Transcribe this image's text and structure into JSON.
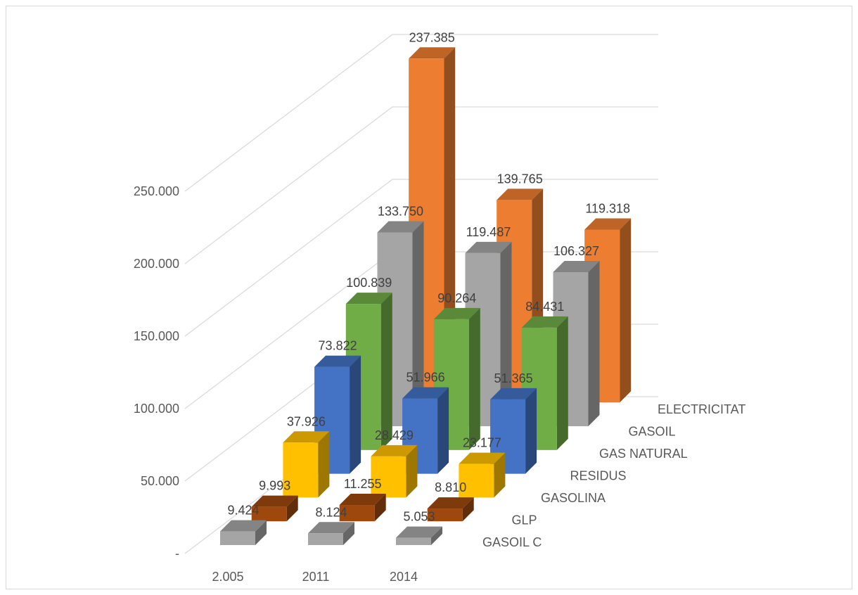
{
  "chart_data": {
    "type": "bar",
    "subtype": "3d-column",
    "title": "",
    "xlabel": "",
    "ylabel": "",
    "categories": [
      "2.005",
      "2011",
      "2014"
    ],
    "y_ticks": [
      "-",
      "50.000",
      "100.000",
      "150.000",
      "200.000",
      "250.000"
    ],
    "ylim": [
      0,
      250000
    ],
    "grid": true,
    "legend": "none",
    "series": [
      {
        "name": "GASOIL C",
        "color": "#a5a5a5",
        "values": [
          9424,
          8124,
          5053
        ],
        "labels": [
          "9.424",
          "8.124",
          "5.053"
        ]
      },
      {
        "name": "GLP",
        "color": "#9e480e",
        "values": [
          9993,
          11255,
          8810
        ],
        "labels": [
          "9.993",
          "11.255",
          "8.810"
        ]
      },
      {
        "name": "GASOLINA",
        "color": "#ffc000",
        "values": [
          37926,
          28429,
          23177
        ],
        "labels": [
          "37.926",
          "28.429",
          "23.177"
        ]
      },
      {
        "name": "RESIDUS",
        "color": "#4472c4",
        "values": [
          73822,
          51966,
          51365
        ],
        "labels": [
          "73.822",
          "51.966",
          "51.365"
        ]
      },
      {
        "name": "GAS NATURAL",
        "color": "#70ad47",
        "values": [
          100839,
          90264,
          84431
        ],
        "labels": [
          "100.839",
          "90.264",
          "84.431"
        ]
      },
      {
        "name": "GASOIL",
        "color": "#a5a5a5",
        "values": [
          133750,
          119487,
          106327
        ],
        "labels": [
          "133.750",
          "119.487",
          "106.327"
        ]
      },
      {
        "name": "ELECTRICITAT",
        "color": "#ed7d31",
        "values": [
          237385,
          139765,
          119318
        ],
        "labels": [
          "237.385",
          "139.765",
          "119.318"
        ]
      }
    ]
  }
}
